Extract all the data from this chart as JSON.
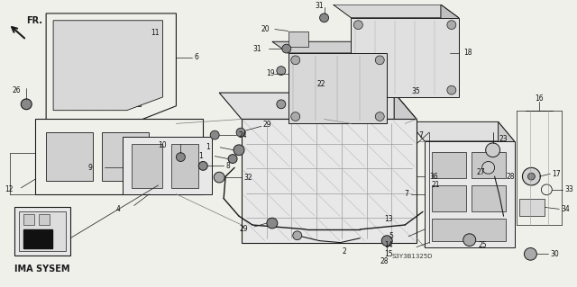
{
  "bg_color": "#f5f5f0",
  "fig_width": 6.4,
  "fig_height": 3.19,
  "dpi": 100,
  "diagram_label": "IMA SYSEM",
  "diagram_code": "S3Y3B1325D",
  "arrow_label": "FR."
}
